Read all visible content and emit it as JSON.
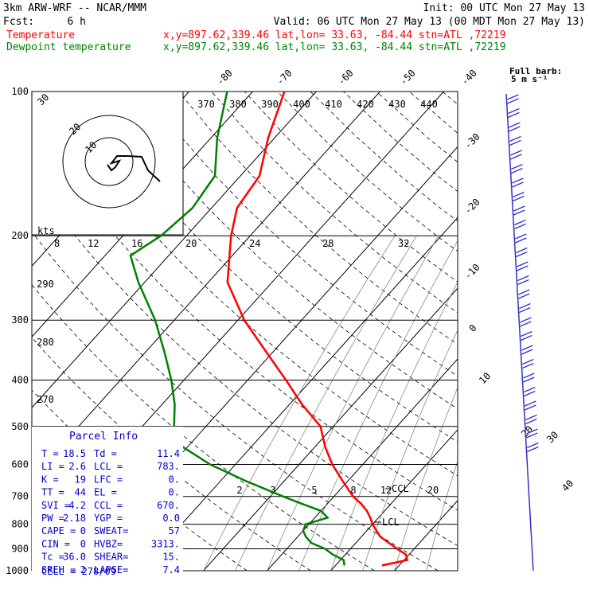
{
  "header": {
    "model": "3km ARW-WRF -- NCAR/MMM",
    "init": "Init: 00 UTC Mon 27 May 13",
    "fcst_label": "Fcst:",
    "fcst_value": "6 h",
    "valid": "Valid: 06 UTC Mon 27 May 13 (00 MDT Mon 27 May 13)",
    "temp_label": "Temperature",
    "temp_info": "x,y=897.62,339.46   lat,lon= 33.63, -84.44  stn=ATL ,72219",
    "dew_label": "Dewpoint temperature",
    "dew_info": "x,y=897.62,339.46   lat,lon= 33.63, -84.44  stn=ATL ,72219"
  },
  "colors": {
    "temperature": "#ff0000",
    "dewpoint": "#008000",
    "wind_barbs": "#3333cc",
    "axes": "#000000"
  },
  "chart_data": {
    "type": "line",
    "plot_kind": "skew-T log-P",
    "y_axis": {
      "scale": "log",
      "unit": "hPa",
      "ticks": [
        100,
        200,
        300,
        400,
        500,
        600,
        700,
        800,
        900,
        1000
      ],
      "range": [
        1000,
        100
      ]
    },
    "isotherm_labels": [
      "-80",
      "-70",
      "-60",
      "-50",
      "-40",
      "-30",
      "-20",
      "-10",
      "0",
      "10",
      "20",
      "30",
      "40"
    ],
    "theta_labels": [
      "370",
      "380",
      "390",
      "400",
      "410",
      "420",
      "430",
      "440"
    ],
    "theta_labels_low": [
      "290",
      "280",
      "270"
    ],
    "mixing_ratio_labels": [
      "2",
      "3",
      "5",
      "8",
      "12",
      "20"
    ],
    "series": [
      {
        "name": "Temperature",
        "color": "#ff0000",
        "pressure": [
          975,
          950,
          925,
          900,
          875,
          850,
          825,
          800,
          775,
          750,
          725,
          700,
          650,
          600,
          550,
          500,
          450,
          400,
          350,
          300,
          250,
          200,
          175,
          150,
          125,
          100
        ],
        "temperature": [
          17.3,
          20.5,
          19.5,
          17.3,
          15.2,
          13.0,
          11.5,
          10.0,
          8.7,
          7.2,
          5.3,
          3.0,
          -0.8,
          -4.8,
          -8.5,
          -12.0,
          -18.0,
          -24.0,
          -31.0,
          -39.0,
          -47.0,
          -53.0,
          -56.0,
          -57.0,
          -61.0,
          -65.0
        ]
      },
      {
        "name": "Dewpoint temperature",
        "color": "#008000",
        "pressure": [
          975,
          950,
          925,
          900,
          875,
          850,
          825,
          800,
          775,
          750,
          725,
          700,
          650,
          600,
          550,
          500,
          450,
          400,
          350,
          300,
          250,
          220,
          200,
          175,
          150,
          125,
          100
        ],
        "temperature": [
          11.4,
          10.5,
          8.0,
          6.0,
          3.0,
          1.3,
          0.0,
          -0.5,
          2.0,
          0.0,
          -4.0,
          -8.0,
          -16.0,
          -24.0,
          -31.0,
          -35.0,
          -38.0,
          -42.0,
          -47.0,
          -53.0,
          -61.0,
          -66.0,
          -64.0,
          -63.0,
          -64.0,
          -69.0,
          -74.0
        ]
      }
    ],
    "annotations": [
      "CCL",
      "LCL"
    ],
    "hodograph": {
      "label": "kts",
      "ring_labels": [
        "10",
        "20",
        "30"
      ]
    },
    "wind_barbs": {
      "legend_title": "Full barb:",
      "legend_value": "5 m s⁻¹"
    }
  },
  "parcel_info": {
    "title": "Parcel Info",
    "rows": [
      [
        "T  =",
        "18.5",
        "Td =",
        "11.4"
      ],
      [
        "LI =",
        "2.6",
        "LCL =",
        "783."
      ],
      [
        "K  =",
        "19",
        "LFC =",
        "0."
      ],
      [
        "TT =",
        "44",
        "EL  =",
        "0."
      ],
      [
        "SVI =",
        "4.2",
        "CCL =",
        "670."
      ],
      [
        "PW =",
        "2.18",
        "YGP =",
        "0.0"
      ],
      [
        "CAPE =",
        "0",
        "SWEAT=",
        "57"
      ],
      [
        "CIN =",
        "0",
        "HVBZ=",
        "3313."
      ],
      [
        "Tc =",
        "36.0",
        "SHEAR=",
        "15."
      ],
      [
        "SREH =",
        "2",
        "LAPSE=",
        "7.4"
      ]
    ],
    "cell": "CELL = 278/09"
  }
}
